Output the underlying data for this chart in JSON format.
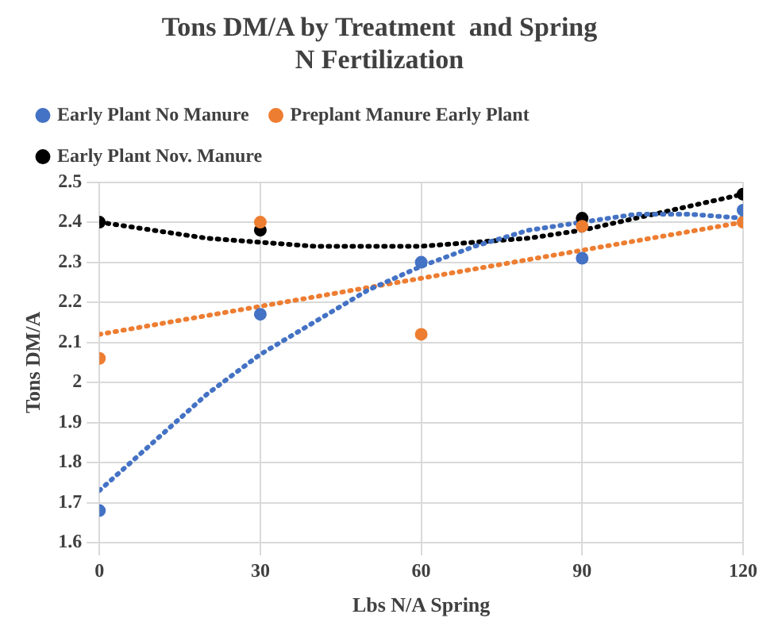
{
  "chart_data": {
    "type": "scatter",
    "title": "Tons DM/A by Treatment  and Spring N Fertilization",
    "xlabel": "Lbs N/A Spring",
    "ylabel": "Tons DM/A",
    "xlim": [
      0,
      120
    ],
    "xticks": [
      0,
      30,
      60,
      90,
      120
    ],
    "ylim": [
      1.6,
      2.5
    ],
    "yticks": [
      1.6,
      1.7,
      1.8,
      1.9,
      2,
      2.1,
      2.2,
      2.3,
      2.4,
      2.5
    ],
    "grid": true,
    "legend": "top",
    "marker": "circle",
    "series": [
      {
        "name": "Early Plant No Manure",
        "color": "#4472c4",
        "x": [
          0,
          30,
          60,
          90,
          120
        ],
        "values": [
          1.68,
          2.17,
          2.3,
          2.31,
          2.43
        ]
      },
      {
        "name": "Preplant Manure Early Plant",
        "color": "#ed7d31",
        "x": [
          0,
          30,
          60,
          90,
          120
        ],
        "values": [
          2.06,
          2.4,
          2.12,
          2.39,
          2.4
        ]
      },
      {
        "name": "Early Plant Nov. Manure",
        "color": "#000000",
        "x": [
          0,
          30,
          60,
          90,
          120
        ],
        "values": [
          2.4,
          2.38,
          null,
          2.41,
          2.47
        ]
      },
      {
        "type": "line",
        "line_style": "dotted",
        "marker": "none",
        "color": "#4472c4",
        "x": [
          0,
          10,
          20,
          30,
          40,
          50,
          60,
          70,
          80,
          90,
          100,
          110,
          120
        ],
        "values": [
          1.73,
          1.85,
          1.97,
          2.07,
          2.15,
          2.23,
          2.29,
          2.34,
          2.38,
          2.4,
          2.42,
          2.42,
          2.41
        ]
      },
      {
        "type": "line",
        "line_style": "dotted",
        "marker": "none",
        "color": "#ed7d31",
        "x": [
          0,
          120
        ],
        "values": [
          2.12,
          2.4
        ]
      },
      {
        "type": "line",
        "line_style": "dotted",
        "marker": "none",
        "color": "#000000",
        "x": [
          0,
          10,
          20,
          30,
          40,
          50,
          60,
          70,
          80,
          90,
          100,
          110,
          120
        ],
        "values": [
          2.4,
          2.38,
          2.36,
          2.35,
          2.34,
          2.34,
          2.34,
          2.35,
          2.36,
          2.38,
          2.41,
          2.44,
          2.47
        ]
      }
    ]
  }
}
